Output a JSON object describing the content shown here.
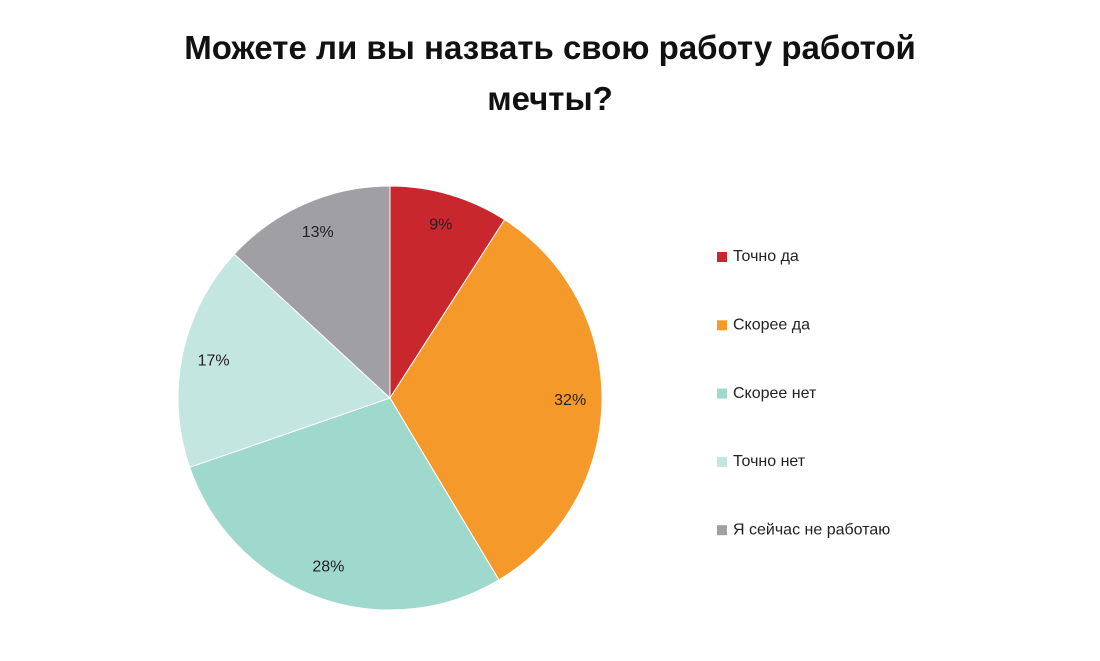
{
  "chart_data": {
    "type": "pie",
    "title": "Можете ли вы назвать свою работу работой мечты?",
    "categories": [
      "Точно да",
      "Скорее да",
      "Скорее нет",
      "Точно нет",
      "Я сейчас не работаю"
    ],
    "values": [
      9,
      32,
      28,
      17,
      13
    ],
    "value_labels": [
      "9%",
      "32%",
      "28%",
      "17%",
      "13%"
    ],
    "colors": [
      "#c9272e",
      "#f59a2a",
      "#9fd8cd",
      "#c4e6e1",
      "#a0a0a4"
    ],
    "legend": "right"
  }
}
